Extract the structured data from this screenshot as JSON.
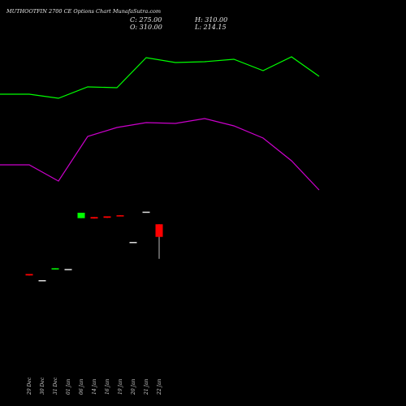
{
  "header": {
    "title": "MUTHOOTFIN 2700 CE Options Chart MunafaSutra.com",
    "close_label": "C: 275.00",
    "open_label": "O: 310.00",
    "high_label": "H: 310.00",
    "low_label": "L: 214.15"
  },
  "colors": {
    "background": "#000000",
    "upper_line": "#00ff00",
    "lower_line": "#cc00cc",
    "bull": "#00ff00",
    "bear": "#ff0000",
    "neutral": "#dddddd"
  },
  "chart_data": {
    "type": "candlestick",
    "categories": [
      "29 Dec",
      "30 Dec",
      "31 Dec",
      "01 Jan",
      "06 Jan",
      "14 Jan",
      "16 Jan",
      "19 Jan",
      "20 Jan",
      "21 Jan",
      "22 Jan"
    ],
    "candles": [
      {
        "date": "29 Dec",
        "open": 172,
        "high": 172,
        "low": 168,
        "close": 168
      },
      {
        "date": "30 Dec",
        "open": 155,
        "high": 155,
        "low": 155,
        "close": 155
      },
      {
        "date": "31 Dec",
        "open": 185,
        "high": 188,
        "low": 185,
        "close": 188
      },
      {
        "date": "01 Jan",
        "open": 186,
        "high": 186,
        "low": 186,
        "close": 186
      },
      {
        "date": "06 Jan",
        "open": 327,
        "high": 342,
        "low": 327,
        "close": 342
      },
      {
        "date": "14 Jan",
        "open": 330,
        "high": 330,
        "low": 326,
        "close": 326
      },
      {
        "date": "16 Jan",
        "open": 332,
        "high": 332,
        "low": 328,
        "close": 328
      },
      {
        "date": "19 Jan",
        "open": 335,
        "high": 335,
        "low": 333,
        "close": 333
      },
      {
        "date": "20 Jan",
        "open": 261,
        "high": 261,
        "low": 261,
        "close": 261
      },
      {
        "date": "21 Jan",
        "open": 345,
        "high": 345,
        "low": 345,
        "close": 345
      },
      {
        "date": "22 Jan",
        "open": 310,
        "high": 310,
        "low": 214.15,
        "close": 275
      }
    ],
    "overlay_lines": [
      {
        "color": "#00ff00",
        "values": [
          116,
          116,
          121,
          107,
          108,
          71,
          77,
          76,
          73,
          87,
          70,
          94
        ]
      },
      {
        "color": "#cc00cc",
        "values": [
          203,
          203,
          223,
          168,
          157,
          151,
          152,
          146,
          155,
          170,
          198,
          234
        ]
      }
    ],
    "overlay_x_positions": [
      0,
      36,
      72,
      108,
      144,
      180,
      216,
      252,
      288,
      324,
      359,
      393
    ],
    "note_units": "price"
  }
}
